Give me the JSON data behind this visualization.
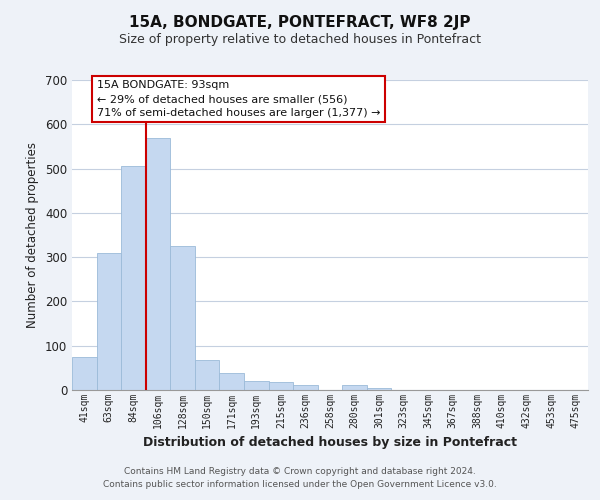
{
  "title": "15A, BONDGATE, PONTEFRACT, WF8 2JP",
  "subtitle": "Size of property relative to detached houses in Pontefract",
  "xlabel": "Distribution of detached houses by size in Pontefract",
  "ylabel": "Number of detached properties",
  "bar_labels": [
    "41sqm",
    "63sqm",
    "84sqm",
    "106sqm",
    "128sqm",
    "150sqm",
    "171sqm",
    "193sqm",
    "215sqm",
    "236sqm",
    "258sqm",
    "280sqm",
    "301sqm",
    "323sqm",
    "345sqm",
    "367sqm",
    "388sqm",
    "410sqm",
    "432sqm",
    "453sqm",
    "475sqm"
  ],
  "bar_values": [
    75,
    310,
    505,
    570,
    325,
    68,
    38,
    20,
    18,
    12,
    0,
    12,
    5,
    0,
    0,
    0,
    0,
    0,
    0,
    0,
    0
  ],
  "bar_color": "#c5d8f0",
  "bar_edge_color": "#9bbad8",
  "vline_x_index": 2,
  "vline_color": "#cc0000",
  "ylim": [
    0,
    700
  ],
  "yticks": [
    0,
    100,
    200,
    300,
    400,
    500,
    600,
    700
  ],
  "annotation_line1": "15A BONDGATE: 93sqm",
  "annotation_line2": "← 29% of detached houses are smaller (556)",
  "annotation_line3": "71% of semi-detached houses are larger (1,377) →",
  "annotation_box_color": "#ffffff",
  "annotation_box_edge": "#cc0000",
  "footer_line1": "Contains HM Land Registry data © Crown copyright and database right 2024.",
  "footer_line2": "Contains public sector information licensed under the Open Government Licence v3.0.",
  "background_color": "#eef2f8",
  "plot_bg_color": "#ffffff",
  "grid_color": "#c5d0e0"
}
